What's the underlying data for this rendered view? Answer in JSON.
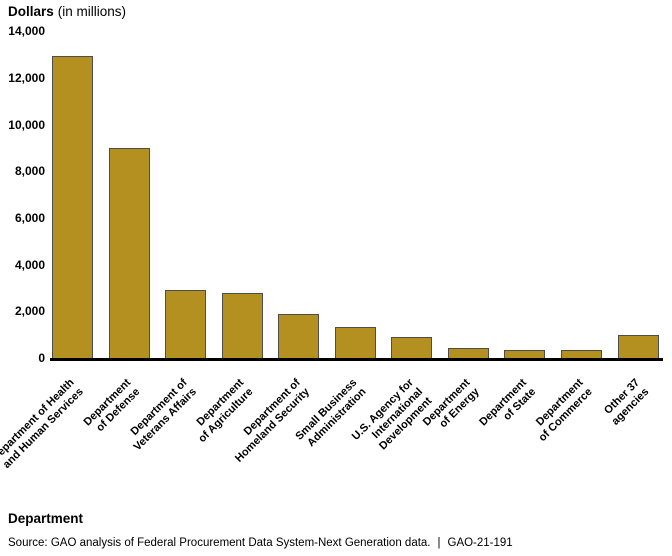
{
  "header": {
    "title_bold": "Dollars",
    "title_note": "(in millions)"
  },
  "chart_data": {
    "type": "bar",
    "title": "Dollars (in millions)",
    "xlabel": "Department",
    "ylabel": "Dollars (in millions)",
    "ylim": [
      0,
      14000
    ],
    "ytick_step": 2000,
    "grid": false,
    "legend": false,
    "bar_color": "#B3901F",
    "bar_border_color": "#4d4d4d",
    "axis_color": "#000000",
    "categories": [
      "Department of Health and Human Services",
      "Department of Defense",
      "Department of Veterans Affairs",
      "Department of Agriculture",
      "Department of Homeland Security",
      "Small Business Administration",
      "U.S. Agency for International Development",
      "Department of Energy",
      "Department of State",
      "Department of Commerce",
      "Other 37 agencies"
    ],
    "category_lines": [
      [
        "Department of Health",
        "and Human Services"
      ],
      [
        "Department",
        "of Defense"
      ],
      [
        "Department of",
        "Veterans Affairs"
      ],
      [
        "Department",
        "of Agriculture"
      ],
      [
        "Department of",
        "Homeland Security"
      ],
      [
        "Small Business",
        "Administration"
      ],
      [
        "U.S. Agency for",
        "International",
        "Development"
      ],
      [
        "Department",
        "of Energy"
      ],
      [
        "Department",
        "of State"
      ],
      [
        "Department",
        "of Commerce"
      ],
      [
        "Other 37",
        "agencies"
      ]
    ],
    "values": [
      12950,
      9000,
      2900,
      2800,
      1900,
      1330,
      890,
      430,
      350,
      340,
      990
    ]
  },
  "footer": {
    "xaxis_title": "Department",
    "source_text": "Source: GAO analysis of Federal Procurement Data System-Next Generation data.",
    "separator": "|",
    "report_id": "GAO-21-191"
  }
}
